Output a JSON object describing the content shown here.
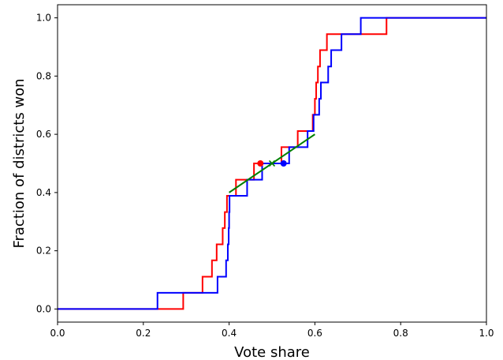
{
  "chart_data": {
    "type": "line",
    "xlabel": "Vote share",
    "ylabel": "Fraction of districts won",
    "xlim": [
      0.0,
      1.0
    ],
    "ylim": [
      -0.045,
      1.045
    ],
    "grid": false,
    "x_ticks": [
      "0.0",
      "0.2",
      "0.4",
      "0.6",
      "0.8",
      "1.0"
    ],
    "y_ticks": [
      "0.0",
      "0.2",
      "0.4",
      "0.6",
      "0.8",
      "1.0"
    ],
    "series": [
      {
        "color": "#ff0000",
        "kind": "step",
        "points": [
          [
            0.0,
            0.0
          ],
          [
            0.293,
            0.0
          ],
          [
            0.293,
            0.0556
          ],
          [
            0.338,
            0.0556
          ],
          [
            0.338,
            0.111
          ],
          [
            0.36,
            0.111
          ],
          [
            0.36,
            0.167
          ],
          [
            0.371,
            0.167
          ],
          [
            0.371,
            0.222
          ],
          [
            0.385,
            0.222
          ],
          [
            0.385,
            0.278
          ],
          [
            0.39,
            0.278
          ],
          [
            0.39,
            0.333
          ],
          [
            0.395,
            0.333
          ],
          [
            0.395,
            0.389
          ],
          [
            0.416,
            0.389
          ],
          [
            0.416,
            0.444
          ],
          [
            0.458,
            0.444
          ],
          [
            0.458,
            0.5
          ],
          [
            0.522,
            0.5
          ],
          [
            0.522,
            0.556
          ],
          [
            0.56,
            0.556
          ],
          [
            0.56,
            0.611
          ],
          [
            0.595,
            0.611
          ],
          [
            0.595,
            0.667
          ],
          [
            0.6,
            0.667
          ],
          [
            0.6,
            0.722
          ],
          [
            0.603,
            0.722
          ],
          [
            0.603,
            0.778
          ],
          [
            0.607,
            0.778
          ],
          [
            0.607,
            0.833
          ],
          [
            0.612,
            0.833
          ],
          [
            0.612,
            0.889
          ],
          [
            0.628,
            0.889
          ],
          [
            0.628,
            0.944
          ],
          [
            0.767,
            0.944
          ],
          [
            0.767,
            1.0
          ],
          [
            1.0,
            1.0
          ]
        ]
      },
      {
        "color": "#0000ff",
        "kind": "step",
        "points": [
          [
            0.0,
            0.0
          ],
          [
            0.233,
            0.0
          ],
          [
            0.233,
            0.0556
          ],
          [
            0.373,
            0.0556
          ],
          [
            0.373,
            0.111
          ],
          [
            0.393,
            0.111
          ],
          [
            0.393,
            0.167
          ],
          [
            0.397,
            0.167
          ],
          [
            0.397,
            0.222
          ],
          [
            0.399,
            0.222
          ],
          [
            0.399,
            0.278
          ],
          [
            0.4,
            0.278
          ],
          [
            0.4,
            0.333
          ],
          [
            0.401,
            0.333
          ],
          [
            0.401,
            0.389
          ],
          [
            0.442,
            0.389
          ],
          [
            0.442,
            0.444
          ],
          [
            0.477,
            0.444
          ],
          [
            0.477,
            0.5
          ],
          [
            0.54,
            0.5
          ],
          [
            0.54,
            0.556
          ],
          [
            0.583,
            0.556
          ],
          [
            0.583,
            0.611
          ],
          [
            0.597,
            0.611
          ],
          [
            0.597,
            0.667
          ],
          [
            0.61,
            0.667
          ],
          [
            0.61,
            0.722
          ],
          [
            0.614,
            0.722
          ],
          [
            0.614,
            0.778
          ],
          [
            0.631,
            0.778
          ],
          [
            0.631,
            0.833
          ],
          [
            0.638,
            0.833
          ],
          [
            0.638,
            0.889
          ],
          [
            0.662,
            0.889
          ],
          [
            0.662,
            0.944
          ],
          [
            0.707,
            0.944
          ],
          [
            0.707,
            1.0
          ],
          [
            1.0,
            1.0
          ]
        ]
      },
      {
        "color": "#008000",
        "kind": "line",
        "points": [
          [
            0.4,
            0.4
          ],
          [
            0.6,
            0.6
          ]
        ]
      }
    ],
    "markers": [
      {
        "color": "#ff0000",
        "x": 0.473,
        "y": 0.5,
        "shape": "circle"
      },
      {
        "color": "#0000ff",
        "x": 0.527,
        "y": 0.5,
        "shape": "circle"
      },
      {
        "color": "#008000",
        "x": 0.5,
        "y": 0.5,
        "shape": "x"
      }
    ]
  }
}
